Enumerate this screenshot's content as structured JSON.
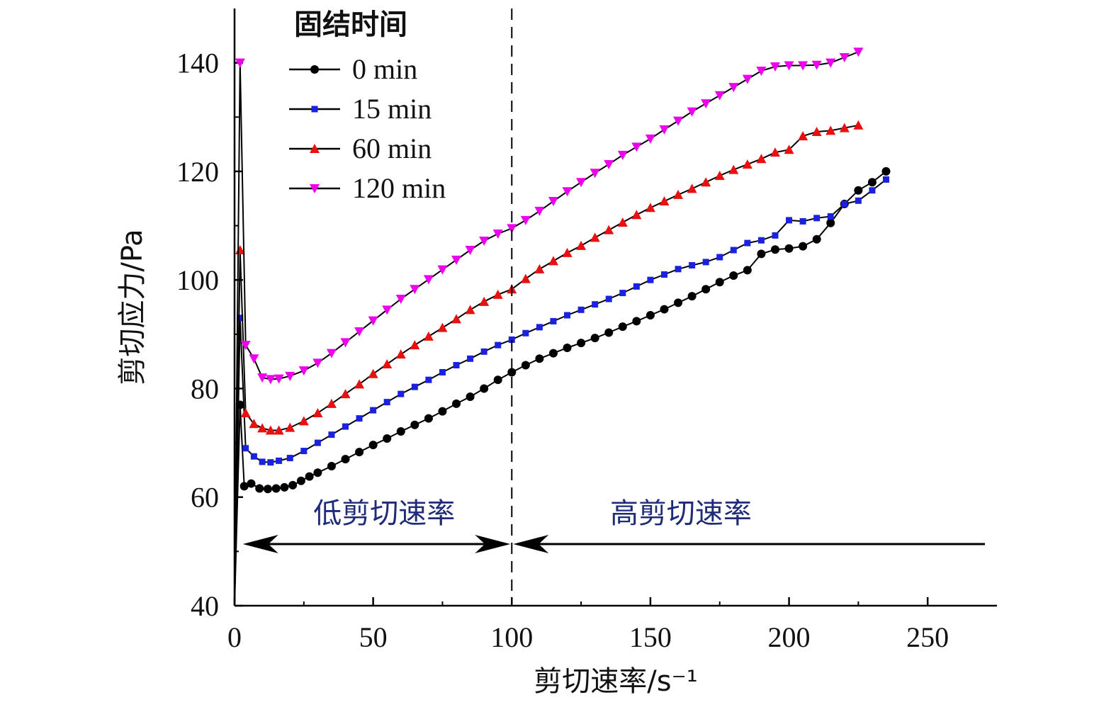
{
  "chart_data": {
    "type": "line",
    "xlabel": "剪切速率/s⁻¹",
    "ylabel": "剪切应力/Pa",
    "xlim": [
      0,
      275
    ],
    "ylim": [
      40,
      150
    ],
    "xticks": [
      0,
      50,
      100,
      150,
      200,
      250
    ],
    "yticks": [
      40,
      60,
      80,
      100,
      120,
      140
    ],
    "grid": false,
    "legend": {
      "title": "固结时间",
      "placement": "top-left"
    },
    "regions": {
      "low_label": "低剪切速率",
      "high_label": "高剪切速率",
      "divider_x": 100
    },
    "series": [
      {
        "name": "0 min",
        "color": "#000000",
        "marker": "circle",
        "values": [
          [
            0,
            40
          ],
          [
            2,
            77
          ],
          [
            3.5,
            62
          ],
          [
            6,
            62.5
          ],
          [
            9,
            61.6
          ],
          [
            12,
            61.5
          ],
          [
            15,
            61.6
          ],
          [
            18,
            61.8
          ],
          [
            21,
            62.2
          ],
          [
            24,
            63
          ],
          [
            27,
            63.8
          ],
          [
            30,
            64.5
          ],
          [
            35,
            65.7
          ],
          [
            40,
            67
          ],
          [
            45,
            68.3
          ],
          [
            50,
            69.6
          ],
          [
            55,
            70.8
          ],
          [
            60,
            72.1
          ],
          [
            65,
            73.3
          ],
          [
            70,
            74.5
          ],
          [
            75,
            75.8
          ],
          [
            80,
            77.2
          ],
          [
            85,
            78.5
          ],
          [
            90,
            80
          ],
          [
            95,
            81.6
          ],
          [
            100,
            83
          ],
          [
            105,
            84.3
          ],
          [
            110,
            85.5
          ],
          [
            115,
            86.5
          ],
          [
            120,
            87.5
          ],
          [
            125,
            88.4
          ],
          [
            130,
            89.3
          ],
          [
            135,
            90.3
          ],
          [
            140,
            91.4
          ],
          [
            145,
            92.4
          ],
          [
            150,
            93.5
          ],
          [
            155,
            94.6
          ],
          [
            160,
            95.8
          ],
          [
            165,
            97
          ],
          [
            170,
            98.3
          ],
          [
            175,
            99.6
          ],
          [
            180,
            100.8
          ],
          [
            185,
            101.8
          ],
          [
            190,
            104.8
          ],
          [
            195,
            105.6
          ],
          [
            200,
            105.8
          ],
          [
            205,
            106.2
          ],
          [
            210,
            107.5
          ],
          [
            215,
            110.5
          ],
          [
            220,
            114
          ],
          [
            225,
            116.5
          ],
          [
            230,
            118
          ],
          [
            235,
            120
          ]
        ]
      },
      {
        "name": "15 min",
        "color": "#1a22e0",
        "marker": "square",
        "values": [
          [
            0,
            40
          ],
          [
            2,
            93
          ],
          [
            4,
            69
          ],
          [
            7,
            67.5
          ],
          [
            10,
            66.5
          ],
          [
            13,
            66.4
          ],
          [
            16,
            66.7
          ],
          [
            20,
            67.2
          ],
          [
            25,
            68.5
          ],
          [
            30,
            70
          ],
          [
            35,
            71.5
          ],
          [
            40,
            73
          ],
          [
            45,
            74.5
          ],
          [
            50,
            76
          ],
          [
            55,
            77.5
          ],
          [
            60,
            79
          ],
          [
            65,
            80.3
          ],
          [
            70,
            81.6
          ],
          [
            75,
            83
          ],
          [
            80,
            84.3
          ],
          [
            85,
            85.5
          ],
          [
            90,
            86.8
          ],
          [
            95,
            88
          ],
          [
            100,
            89
          ],
          [
            105,
            90.2
          ],
          [
            110,
            91.3
          ],
          [
            115,
            92.4
          ],
          [
            120,
            93.5
          ],
          [
            125,
            94.5
          ],
          [
            130,
            95.5
          ],
          [
            135,
            96.5
          ],
          [
            140,
            97.6
          ],
          [
            145,
            98.8
          ],
          [
            150,
            100
          ],
          [
            155,
            101
          ],
          [
            160,
            102
          ],
          [
            165,
            102.7
          ],
          [
            170,
            103.3
          ],
          [
            175,
            104.2
          ],
          [
            180,
            105.5
          ],
          [
            185,
            106.8
          ],
          [
            190,
            107.3
          ],
          [
            195,
            108.2
          ],
          [
            200,
            111
          ],
          [
            205,
            110.8
          ],
          [
            210,
            111.4
          ],
          [
            215,
            111.7
          ],
          [
            220,
            114
          ],
          [
            225,
            114.6
          ],
          [
            230,
            116.5
          ],
          [
            235,
            118.5
          ]
        ]
      },
      {
        "name": "60 min",
        "color": "#e81010",
        "marker": "triangle-up",
        "values": [
          [
            0,
            40
          ],
          [
            2,
            105.5
          ],
          [
            4,
            75.5
          ],
          [
            7,
            73.5
          ],
          [
            10,
            72.7
          ],
          [
            13,
            72.3
          ],
          [
            16,
            72.3
          ],
          [
            20,
            72.8
          ],
          [
            25,
            74
          ],
          [
            30,
            75.5
          ],
          [
            35,
            77.2
          ],
          [
            40,
            79
          ],
          [
            45,
            80.8
          ],
          [
            50,
            82.7
          ],
          [
            55,
            84.5
          ],
          [
            60,
            86.3
          ],
          [
            65,
            88
          ],
          [
            70,
            89.6
          ],
          [
            75,
            91.2
          ],
          [
            80,
            92.8
          ],
          [
            85,
            94.5
          ],
          [
            90,
            96
          ],
          [
            95,
            97.3
          ],
          [
            100,
            98.3
          ],
          [
            105,
            100.2
          ],
          [
            110,
            102
          ],
          [
            115,
            103.5
          ],
          [
            120,
            105
          ],
          [
            125,
            106.3
          ],
          [
            130,
            107.8
          ],
          [
            135,
            109.2
          ],
          [
            140,
            110.6
          ],
          [
            145,
            112
          ],
          [
            150,
            113.3
          ],
          [
            155,
            114.5
          ],
          [
            160,
            115.7
          ],
          [
            165,
            116.8
          ],
          [
            170,
            118
          ],
          [
            175,
            119.2
          ],
          [
            180,
            120.3
          ],
          [
            185,
            121.3
          ],
          [
            190,
            122.3
          ],
          [
            195,
            123.5
          ],
          [
            200,
            124
          ],
          [
            205,
            126.5
          ],
          [
            210,
            127.3
          ],
          [
            215,
            127.5
          ],
          [
            220,
            128
          ],
          [
            225,
            128.5
          ]
        ]
      },
      {
        "name": "120 min",
        "color": "#ee00ee",
        "marker": "triangle-down",
        "values": [
          [
            0,
            40
          ],
          [
            2,
            140
          ],
          [
            4,
            88
          ],
          [
            7,
            85.5
          ],
          [
            10,
            82
          ],
          [
            13,
            81.7
          ],
          [
            16,
            81.8
          ],
          [
            20,
            82.3
          ],
          [
            25,
            83.3
          ],
          [
            30,
            84.7
          ],
          [
            35,
            86.5
          ],
          [
            40,
            88.5
          ],
          [
            45,
            90.5
          ],
          [
            50,
            92.5
          ],
          [
            55,
            94.5
          ],
          [
            60,
            96.5
          ],
          [
            65,
            98.3
          ],
          [
            70,
            100.1
          ],
          [
            75,
            101.9
          ],
          [
            80,
            103.7
          ],
          [
            85,
            105.5
          ],
          [
            90,
            107.2
          ],
          [
            95,
            108.5
          ],
          [
            100,
            109.5
          ],
          [
            105,
            111
          ],
          [
            110,
            112.7
          ],
          [
            115,
            114.5
          ],
          [
            120,
            116.3
          ],
          [
            125,
            118
          ],
          [
            130,
            119.7
          ],
          [
            135,
            121.3
          ],
          [
            140,
            123
          ],
          [
            145,
            124.5
          ],
          [
            150,
            126
          ],
          [
            155,
            127.7
          ],
          [
            160,
            129.3
          ],
          [
            165,
            131
          ],
          [
            170,
            132.5
          ],
          [
            175,
            134
          ],
          [
            180,
            135.5
          ],
          [
            185,
            137
          ],
          [
            190,
            138.5
          ],
          [
            195,
            139.3
          ],
          [
            200,
            139.5
          ],
          [
            205,
            139.5
          ],
          [
            210,
            139.6
          ],
          [
            215,
            140
          ],
          [
            220,
            141
          ],
          [
            225,
            142
          ]
        ]
      }
    ]
  }
}
